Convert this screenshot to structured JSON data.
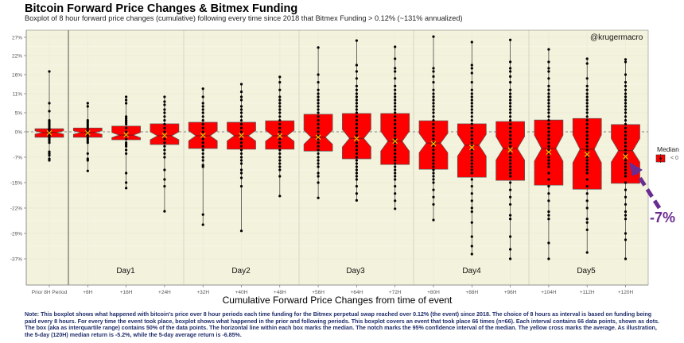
{
  "title": "Bitcoin Forward Price Changes & Bitmex Funding",
  "subtitle": "Boxplot of 8 hour forward price changes (cumulative) following every time since 2018 that Bitmex Funding > 0.12% (~131% annualized)",
  "watermark": "@krugermacro",
  "note": "Note: This boxplot shows what happened with bitcoin's price over 8 hour periods each time funding for the Bitmex perpetual swap reached over 0.12% (the event) since 2018. The choice of 8 hours as interval is based on funding being paid every 8 hours. For every time the event took place, boxplot shows what happened in the prior and following periods. This boxplot covers an event that took place 66 times (n=66). Each interval contains 66 data points, shown as dots. The box (aka as interquartile range) contains 50% of the data points. The horizontal line within each box marks the median. The notch marks the 95% confidence interval of the median. The yellow cross marks the average. As illustration, the 5-day (120H) median return is -5.2%, while the 5-day average return is -6.85%.",
  "legend": {
    "title": "Median",
    "label": "< 0",
    "color": "#ff0000"
  },
  "callout": {
    "text": "-7%",
    "color": "#6a2c91"
  },
  "colors": {
    "box": "#ff0000",
    "mean_marker": "#e6c200",
    "panel": "#f3f2dc",
    "points": "#000000",
    "zero_line": "#999999"
  },
  "chart_data": {
    "type": "boxplot",
    "title": "Bitcoin Forward Price Changes & Bitmex Funding",
    "xlabel": "Cumulative Forward Price Changes from time of event",
    "ylabel": "",
    "y_ticks": [
      "27%",
      "22%",
      "16%",
      "11%",
      "5%",
      "0%",
      "-7%",
      "-15%",
      "-22%",
      "-29%",
      "-37%"
    ],
    "y_tick_values": [
      27,
      22,
      16,
      11,
      5,
      0,
      -7,
      -15,
      -22,
      -29,
      -37
    ],
    "reference_line": 0,
    "grid": true,
    "legend_position": "right",
    "day_labels": [
      "Day1",
      "Day2",
      "Day3",
      "Day4",
      "Day5"
    ],
    "n_per_category": 66,
    "categories": [
      "Prior 8H Period",
      "+8H",
      "+16H",
      "+24H",
      "+32H",
      "+40H",
      "+48H",
      "+56H",
      "+64H",
      "+72H",
      "+80H",
      "+88H",
      "+96H",
      "+104H",
      "+112H",
      "+120H"
    ],
    "boxes": [
      {
        "q1": -1.5,
        "median": -0.2,
        "q3": 0.8,
        "mean": -0.3,
        "min": -8,
        "max": 17,
        "points": [
          17,
          8,
          5.5,
          3,
          2.5,
          2,
          1.5,
          1,
          0.5,
          0,
          -0.5,
          -1,
          -1.5,
          -2,
          -2.5,
          -3,
          -5.5,
          -6,
          -6.5,
          -7.5,
          -8
        ]
      },
      {
        "q1": -1.5,
        "median": -0.2,
        "q3": 1.0,
        "mean": -0.3,
        "min": -11.3,
        "max": 8,
        "points": [
          8,
          7,
          3,
          2.5,
          2,
          1.5,
          1,
          0.5,
          0,
          -0.5,
          -1,
          -1.5,
          -2,
          -2.5,
          -3,
          -6,
          -7.5,
          -8,
          -11.3
        ]
      },
      {
        "q1": -2.2,
        "median": -0.9,
        "q3": 1.5,
        "mean": -0.8,
        "min": -16.5,
        "max": 10,
        "points": [
          10,
          9,
          8,
          4,
          3.5,
          3,
          2.5,
          2,
          1,
          0,
          -1,
          -2,
          -3,
          -3.5,
          -4,
          -5,
          -6,
          -12,
          -15,
          -16.5
        ]
      },
      {
        "q1": -3.5,
        "median": -1.1,
        "q3": 2.1,
        "mean": -1.0,
        "min": -22.9,
        "max": 10,
        "points": [
          10,
          8.5,
          7.5,
          6,
          5,
          4,
          3,
          2,
          1,
          0,
          -1,
          -2,
          -3,
          -4,
          -5,
          -6,
          -7,
          -11,
          -14,
          -16,
          -22.9
        ]
      },
      {
        "q1": -4.6,
        "median": -1.1,
        "q3": 2.5,
        "mean": -1.0,
        "min": -26.6,
        "max": 12.3,
        "points": [
          12.3,
          10,
          8,
          7,
          6,
          5,
          4,
          3,
          2,
          1,
          0,
          -1,
          -2,
          -3,
          -4,
          -5,
          -6,
          -7,
          -8,
          -9.5,
          -10,
          -23.8,
          -26.6
        ]
      },
      {
        "q1": -4.8,
        "median": -1.1,
        "q3": 2.5,
        "mean": -1.0,
        "min": -28.3,
        "max": 13.5,
        "points": [
          13.5,
          11.5,
          10,
          9,
          7,
          6,
          5,
          4,
          3,
          2,
          1,
          0,
          -1,
          -2,
          -3,
          -4,
          -5,
          -6,
          -7,
          -8,
          -9,
          -11,
          -12,
          -13.5,
          -16,
          -28.3
        ]
      },
      {
        "q1": -4.8,
        "median": -1.1,
        "q3": 2.9,
        "mean": -1.1,
        "min": -18.7,
        "max": 15.4,
        "points": [
          15.4,
          14,
          12,
          10,
          9,
          8,
          7,
          6,
          5,
          4,
          3,
          2,
          1,
          0,
          -1,
          -2,
          -3,
          -4,
          -5,
          -6,
          -7,
          -8,
          -9,
          -10,
          -11,
          -13,
          -18.7
        ]
      },
      {
        "q1": -5.3,
        "median": -1.5,
        "q3": 4.6,
        "mean": -1.5,
        "min": -19.2,
        "max": 24.2,
        "points": [
          24.2,
          16,
          14,
          12,
          11,
          10,
          9,
          8,
          7,
          6,
          5,
          4,
          3,
          2,
          1,
          0,
          -1,
          -2,
          -3,
          -4,
          -5,
          -6,
          -7,
          -8,
          -9,
          -10,
          -12,
          -13,
          -15,
          -19.2
        ]
      },
      {
        "q1": -7.5,
        "median": -1.8,
        "q3": 4.8,
        "mean": -1.9,
        "min": -19.9,
        "max": 26.1,
        "points": [
          26.1,
          19,
          17,
          15,
          13,
          12,
          11,
          10,
          9,
          8,
          7,
          6,
          5,
          4,
          3,
          2,
          1,
          0,
          -1,
          -2,
          -3,
          -4,
          -5,
          -6,
          -7,
          -8,
          -9,
          -10,
          -11,
          -12,
          -13,
          -14,
          -16,
          -18,
          -19.9
        ]
      },
      {
        "q1": -9.3,
        "median": -2.6,
        "q3": 4.8,
        "mean": -2.6,
        "min": -22.2,
        "max": 24.4,
        "points": [
          24.4,
          21,
          18,
          17,
          15,
          13,
          12,
          11,
          10,
          9,
          8,
          7,
          6,
          5,
          4,
          3,
          2,
          1,
          0,
          -1,
          -2,
          -3,
          -4,
          -5,
          -6,
          -7,
          -8,
          -9,
          -10,
          -11,
          -12,
          -13,
          -14,
          -16,
          -18,
          -20,
          -22.2
        ]
      },
      {
        "q1": -10.8,
        "median": -3.1,
        "q3": 2.9,
        "mean": -3.3,
        "min": -25.3,
        "max": 27.2,
        "points": [
          27.2,
          18,
          17,
          15.5,
          14,
          12,
          11,
          10,
          9,
          8,
          7,
          6,
          5,
          4,
          3,
          2,
          1,
          0,
          -1,
          -2,
          -3,
          -4,
          -5,
          -6,
          -7,
          -8,
          -9,
          -10,
          -11,
          -12,
          -13,
          -14,
          -15,
          -17,
          -19,
          -21,
          -25.3
        ]
      },
      {
        "q1": -13.3,
        "median": -3.7,
        "q3": 2.1,
        "mean": -4.3,
        "min": -35.5,
        "max": 25.7,
        "points": [
          25.7,
          19,
          18,
          16.5,
          14,
          12,
          11,
          10,
          9,
          8,
          7,
          6,
          5,
          4,
          3,
          2,
          1,
          0,
          -1,
          -2,
          -3,
          -4,
          -5,
          -6,
          -7,
          -8,
          -9,
          -10,
          -11,
          -12,
          -14,
          -16,
          -18,
          -20,
          -22,
          -23,
          -26,
          -30,
          -33,
          -35.5
        ]
      },
      {
        "q1": -14.3,
        "median": -4.6,
        "q3": 2.7,
        "mean": -5.0,
        "min": -37,
        "max": 26.3,
        "points": [
          26.3,
          20,
          18,
          17,
          15.5,
          14,
          12,
          11,
          10,
          9,
          8,
          7,
          6,
          5,
          4,
          3,
          2,
          1,
          0,
          -1,
          -2,
          -3,
          -4,
          -5,
          -6,
          -7,
          -8,
          -9,
          -10,
          -11,
          -12,
          -13,
          -15,
          -17,
          -19,
          -21,
          -24,
          -25,
          -30,
          -34,
          -37
        ]
      },
      {
        "q1": -15.7,
        "median": -4.6,
        "q3": 3.1,
        "mean": -5.6,
        "min": -37,
        "max": 23.7,
        "points": [
          23.7,
          20,
          18,
          17,
          15,
          13,
          12,
          11,
          10,
          9,
          8,
          7,
          6,
          5,
          4,
          3,
          2,
          1,
          0,
          -1,
          -2,
          -3,
          -4,
          -5,
          -6,
          -7,
          -8,
          -9,
          -10,
          -12,
          -14,
          -16,
          -18,
          -20,
          -23,
          -24,
          -25,
          -32,
          -37
        ]
      },
      {
        "q1": -16.8,
        "median": -4.8,
        "q3": 3.5,
        "mean": -6.2,
        "min": -35,
        "max": 21,
        "points": [
          21,
          19.5,
          15,
          13,
          12,
          11,
          10,
          9,
          8,
          7,
          6,
          5,
          4,
          3,
          2,
          1,
          0,
          -1,
          -2,
          -3,
          -4,
          -5,
          -6,
          -7,
          -8,
          -9,
          -10,
          -11,
          -12,
          -14,
          -16,
          -18,
          -20,
          -22,
          -25,
          -26,
          -28,
          -35
        ]
      },
      {
        "q1": -15.2,
        "median": -5.2,
        "q3": 1.9,
        "mean": -6.85,
        "min": -37,
        "max": 20.8,
        "points": [
          20.8,
          20,
          16,
          14,
          13,
          12,
          11,
          10,
          9,
          8,
          7,
          6,
          5,
          4,
          3,
          2,
          1,
          0,
          -1,
          -2,
          -3,
          -4,
          -5,
          -6,
          -7,
          -8,
          -9,
          -10,
          -11,
          -12,
          -13,
          -15,
          -17,
          -19,
          -21,
          -23,
          -24,
          -25,
          -29,
          -31,
          -37
        ]
      }
    ]
  }
}
